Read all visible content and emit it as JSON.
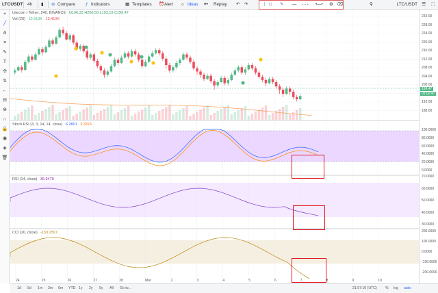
{
  "toolbar": {
    "symbol": "LTCUSDT",
    "interval": "4h",
    "compare": "Compare",
    "indicators": "Indicators",
    "templates": "Templates",
    "alert": "Alert",
    "ideas": "Ideas",
    "replay": "Replay",
    "right_symbol": "LTC/USDT"
  },
  "main": {
    "title": "Litecoin / Tether, 240, BINANCE",
    "ohlc": "O196.33  H200.50  L193.19  C199.47",
    "vol_label": "Vol (20)",
    "vol_values": [
      "10.913K",
      "13.410K"
    ],
    "price_ticks": [
      "232.00",
      "228.00",
      "224.00",
      "220.00",
      "216.00",
      "212.00",
      "208.00",
      "204.00",
      "200.00",
      "196.00",
      "192.00",
      "188.00"
    ],
    "last_price": "199.47",
    "countdown": "02:02:47"
  },
  "stoch": {
    "label": "Stoch RSI (3, 3, 14, 14, close)",
    "v1": "6.2801",
    "v2": "3.3376",
    "ticks": [
      "100.0000",
      "80.0000",
      "60.0000",
      "40.0000",
      "20.0000",
      "0.0000"
    ]
  },
  "rsi": {
    "label": "RSI (14, close)",
    "value": "36.9470",
    "ticks": [
      "70.0000",
      "60.0000",
      "50.0000",
      "40.0000",
      "30.0000"
    ]
  },
  "cci": {
    "label": "CCI (20, close)",
    "value": "-153.2567",
    "ticks": [
      "200.0000",
      "100.0000",
      "0.0000",
      "-100.0000",
      "-200.0000"
    ]
  },
  "dates": [
    "24",
    "25",
    "26",
    "27",
    "28",
    "Mar",
    "2",
    "3",
    "4",
    "5",
    "6",
    "7",
    "8",
    "9",
    "10"
  ],
  "bottom": {
    "timeframes": [
      "1d",
      "5d",
      "1m",
      "3m",
      "6m",
      "YTD",
      "1y",
      "2y",
      "5y",
      "All"
    ],
    "goto": "Go to...",
    "clock": "21:57:16 (UTC)",
    "pct": "%",
    "log": "log",
    "auto": "auto"
  },
  "colors": {
    "up": "#53b987",
    "down": "#eb4d5c",
    "accent": "#e0141e",
    "stoch_band": "#e4c9ff",
    "rsi_band": "#efe0ff",
    "cci_band": "#f2ebdb"
  }
}
